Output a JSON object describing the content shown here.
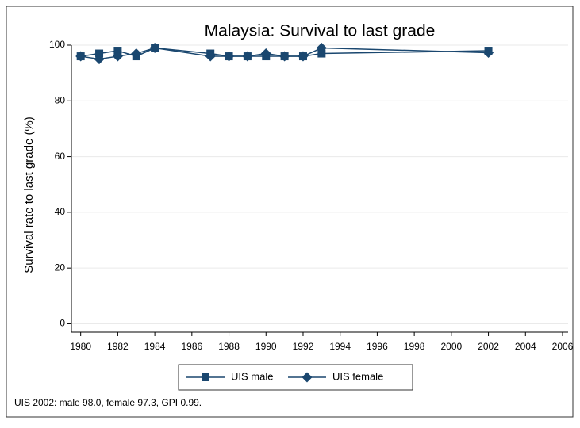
{
  "chart_data": {
    "type": "line",
    "title": "Malaysia: Survival to last grade",
    "y_label": "Survival rate to last grade (%)",
    "note": "UIS 2002: male 98.0, female 97.3, GPI 0.99.",
    "x": [
      1980,
      1981,
      1982,
      1983,
      1984,
      1987,
      1988,
      1989,
      1990,
      1991,
      1992,
      1993,
      2002
    ],
    "series": [
      {
        "name": "UIS male",
        "color": "#1a476f",
        "marker": "square",
        "values": [
          96,
          97,
          98,
          96,
          99,
          97,
          96,
          96,
          96,
          96,
          96,
          97,
          98.0
        ]
      },
      {
        "name": "UIS female",
        "color": "#1a476f",
        "marker": "diamond",
        "values": [
          96,
          95,
          96,
          97,
          99,
          96,
          96,
          96,
          97,
          96,
          96,
          99,
          97.3
        ]
      }
    ],
    "xlim": [
      1979.5,
      2006.3
    ],
    "ylim": [
      -3,
      100
    ],
    "xticks": [
      1980,
      1982,
      1984,
      1986,
      1988,
      1990,
      1992,
      1994,
      1996,
      1998,
      2000,
      2002,
      2004,
      2006
    ],
    "yticks": [
      0,
      20,
      40,
      60,
      80,
      100
    ],
    "grid": true,
    "legend": "bottom"
  }
}
